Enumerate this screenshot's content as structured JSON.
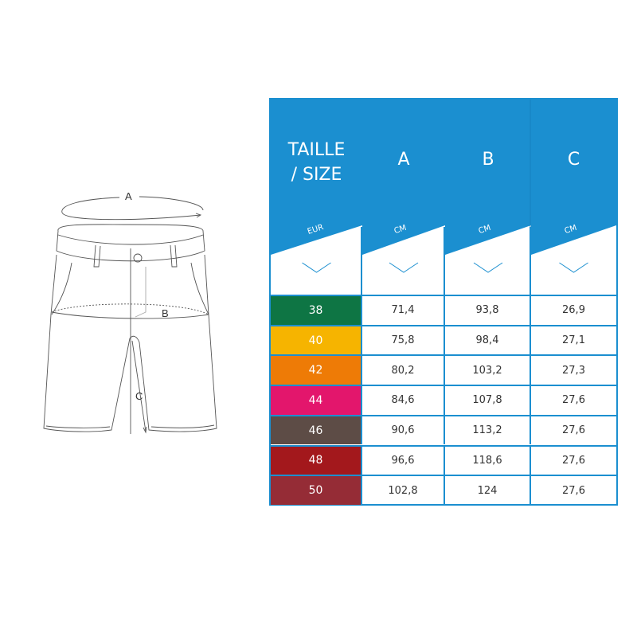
{
  "diagram": {
    "label_a": "A",
    "label_b": "B",
    "label_c": "C"
  },
  "table": {
    "header_color": "#1b8fd0",
    "columns": [
      {
        "title_line1": "TAILLE",
        "title_line2": "/ SIZE",
        "unit": "EUR"
      },
      {
        "title_line1": "A",
        "title_line2": "",
        "unit": "CM"
      },
      {
        "title_line1": "B",
        "title_line2": "",
        "unit": "CM"
      },
      {
        "title_line1": "C",
        "title_line2": "",
        "unit": "CM"
      }
    ],
    "header_icon": "chevron-down-icon",
    "rows": [
      {
        "size": "38",
        "color": "#0e7544",
        "a": "71,4",
        "b": "93,8",
        "c": "26,9"
      },
      {
        "size": "40",
        "color": "#f6b400",
        "a": "75,8",
        "b": "98,4",
        "c": "27,1"
      },
      {
        "size": "42",
        "color": "#ee7b06",
        "a": "80,2",
        "b": "103,2",
        "c": "27,3"
      },
      {
        "size": "44",
        "color": "#e3166c",
        "a": "84,6",
        "b": "107,8",
        "c": "27,6"
      },
      {
        "size": "46",
        "color": "#5d4c46",
        "a": "90,6",
        "b": "113,2",
        "c": "27,6"
      },
      {
        "size": "48",
        "color": "#a3181c",
        "a": "96,6",
        "b": "118,6",
        "c": "27,6"
      },
      {
        "size": "50",
        "color": "#952c36",
        "a": "102,8",
        "b": "124",
        "c": "27,6"
      }
    ]
  }
}
